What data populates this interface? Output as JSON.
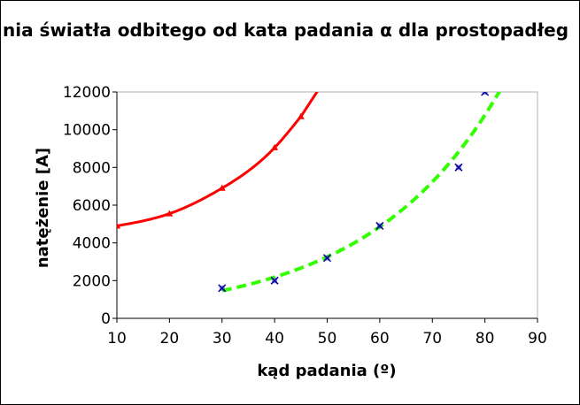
{
  "chart_data": {
    "type": "line",
    "title": "nia światła odbitego od kata padania α dla prostopadłeg",
    "xlabel": "kąd padania (º)",
    "ylabel": "natężenie [A]",
    "xlim": [
      10,
      90
    ],
    "ylim": [
      0,
      12000
    ],
    "xticks": [
      10,
      20,
      30,
      40,
      50,
      60,
      70,
      80,
      90
    ],
    "yticks": [
      0,
      2000,
      4000,
      6000,
      8000,
      10000,
      12000
    ],
    "grid": false,
    "series": [
      {
        "color": "#ff0000",
        "marker": "triangle",
        "style": "solid",
        "x": [
          10,
          20,
          30,
          40,
          45,
          49
        ],
        "y": [
          4900,
          5550,
          6900,
          9050,
          10700,
          12400
        ]
      },
      {
        "color": "#33ff00",
        "marker": "x",
        "marker_color": "#00008b",
        "style": "dashed",
        "x": [
          30,
          40,
          50,
          60,
          75,
          80
        ],
        "y": [
          1600,
          2000,
          3200,
          4900,
          8000,
          12000
        ]
      }
    ]
  }
}
